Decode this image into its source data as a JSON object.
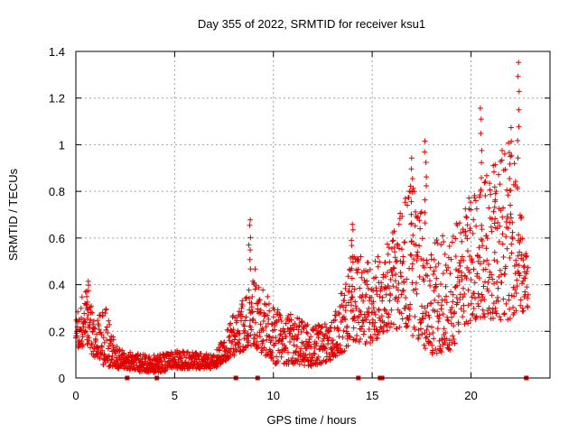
{
  "chart_data": {
    "type": "scatter",
    "title": "Day 355 of 2022, SRMTID for receiver ksu1",
    "xlabel": "GPS time / hours",
    "ylabel": "SRMTID / TECUs",
    "xlim": [
      0,
      24
    ],
    "ylim": [
      0,
      1.4
    ],
    "xticks": [
      0,
      5,
      10,
      15,
      20
    ],
    "yticks": [
      0,
      0.2,
      0.4,
      0.6,
      0.8,
      1,
      1.2,
      1.4
    ],
    "grid": true,
    "marker": "+",
    "series": [
      {
        "name": "SRMTID",
        "color": "#e00000",
        "envelope": [
          {
            "x": 0.0,
            "low": 0.12,
            "high": 0.28
          },
          {
            "x": 0.5,
            "low": 0.14,
            "high": 0.4
          },
          {
            "x": 1.0,
            "low": 0.08,
            "high": 0.25
          },
          {
            "x": 1.5,
            "low": 0.05,
            "high": 0.32
          },
          {
            "x": 2.0,
            "low": 0.04,
            "high": 0.14
          },
          {
            "x": 3.0,
            "low": 0.03,
            "high": 0.11
          },
          {
            "x": 4.0,
            "low": 0.02,
            "high": 0.1
          },
          {
            "x": 5.0,
            "low": 0.04,
            "high": 0.12
          },
          {
            "x": 6.0,
            "low": 0.04,
            "high": 0.11
          },
          {
            "x": 7.0,
            "low": 0.04,
            "high": 0.1
          },
          {
            "x": 7.5,
            "low": 0.07,
            "high": 0.2
          },
          {
            "x": 8.5,
            "low": 0.12,
            "high": 0.35
          },
          {
            "x": 9.0,
            "low": 0.14,
            "high": 0.48
          },
          {
            "x": 10.0,
            "low": 0.06,
            "high": 0.3
          },
          {
            "x": 11.0,
            "low": 0.06,
            "high": 0.27
          },
          {
            "x": 12.0,
            "low": 0.05,
            "high": 0.22
          },
          {
            "x": 13.0,
            "low": 0.08,
            "high": 0.25
          },
          {
            "x": 14.0,
            "low": 0.14,
            "high": 0.55
          },
          {
            "x": 15.0,
            "low": 0.15,
            "high": 0.48
          },
          {
            "x": 16.0,
            "low": 0.22,
            "high": 0.62
          },
          {
            "x": 17.0,
            "low": 0.18,
            "high": 0.85
          },
          {
            "x": 18.0,
            "low": 0.1,
            "high": 0.6
          },
          {
            "x": 19.0,
            "low": 0.12,
            "high": 0.65
          },
          {
            "x": 20.0,
            "low": 0.25,
            "high": 0.8
          },
          {
            "x": 21.0,
            "low": 0.25,
            "high": 0.9
          },
          {
            "x": 22.0,
            "low": 0.25,
            "high": 1.05
          },
          {
            "x": 22.9,
            "low": 0.3,
            "high": 0.48
          }
        ],
        "peaks": [
          {
            "x": 0.6,
            "y": 0.42
          },
          {
            "x": 8.8,
            "y": 0.69
          },
          {
            "x": 14.0,
            "y": 0.67
          },
          {
            "x": 17.0,
            "y": 0.95
          },
          {
            "x": 17.7,
            "y": 1.03
          },
          {
            "x": 20.5,
            "y": 1.17
          },
          {
            "x": 21.2,
            "y": 0.93
          },
          {
            "x": 22.0,
            "y": 1.08
          },
          {
            "x": 22.4,
            "y": 1.37
          }
        ],
        "baseline_markers_x": [
          2.6,
          4.1,
          8.1,
          9.2,
          14.3,
          15.4,
          15.5,
          22.8
        ]
      }
    ]
  }
}
